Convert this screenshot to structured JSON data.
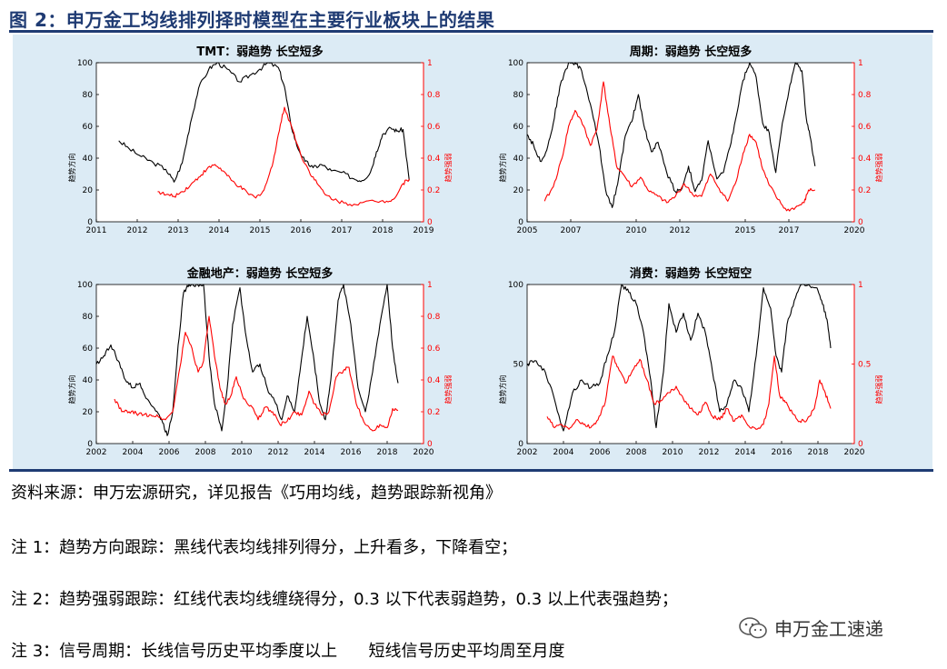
{
  "figure_title": "图 2：申万金工均线排列择时模型在主要行业板块上的结果",
  "colors": {
    "black_line": "#000000",
    "red_line": "#ff0000",
    "accent": "#1f3b73",
    "panel_bg": "#dcebf5"
  },
  "notes": {
    "source": "资料来源：申万宏源研究，详见报告《巧用均线，趋势跟踪新视角》",
    "note1": "注 1：趋势方向跟踪：黑线代表均线排列得分，上升看多，下降看空；",
    "note2": "注 2：趋势强弱跟踪：红线代表均线缠绕得分，0.3 以下代表弱趋势，0.3 以上代表强趋势；",
    "note3": "注 3：信号周期：长线信号历史平均季度以上      短线信号历史平均周至月度"
  },
  "watermark": {
    "text": "申万金工速递",
    "icon": "wechat-icon"
  },
  "chart_data": [
    {
      "type": "line",
      "title": "TMT：弱趋势   长空短多",
      "xlabel": "",
      "ylabel": "趋势方向",
      "y2label": "趋势强弱",
      "xlim": [
        2011,
        2019
      ],
      "ylim": [
        0,
        100
      ],
      "y2lim": [
        0,
        1
      ],
      "xticks": [
        "2011",
        "2012",
        "2013",
        "2014",
        "2015",
        "2016",
        "2017",
        "2018",
        "2019"
      ],
      "yticks": [
        "0",
        "20",
        "40",
        "60",
        "80",
        "100"
      ],
      "y2ticks": [
        "0",
        "0.2",
        "0.4",
        "0.6",
        "0.8",
        "1"
      ],
      "series": [
        {
          "axis": "left",
          "color": "#000000",
          "x": [
            2011.55,
            2011.8,
            2012.1,
            2012.4,
            2012.7,
            2012.9,
            2013.1,
            2013.3,
            2013.5,
            2013.75,
            2013.95,
            2014.2,
            2014.5,
            2014.75,
            2015.0,
            2015.2,
            2015.45,
            2015.6,
            2015.75,
            2015.9,
            2016.1,
            2016.3,
            2016.5,
            2016.75,
            2017.0,
            2017.3,
            2017.5,
            2017.7,
            2017.85,
            2018.0,
            2018.2,
            2018.35,
            2018.5,
            2018.65
          ],
          "y": [
            51,
            46,
            41,
            37,
            33,
            25,
            37,
            62,
            84,
            96,
            100,
            96,
            88,
            92,
            96,
            100,
            97,
            85,
            62,
            48,
            38,
            34,
            36,
            32,
            31,
            27,
            26,
            31,
            44,
            55,
            59,
            57,
            58,
            26
          ]
        },
        {
          "axis": "right",
          "color": "#ff0000",
          "x": [
            2012.5,
            2012.7,
            2012.9,
            2013.1,
            2013.3,
            2013.5,
            2013.7,
            2013.9,
            2014.1,
            2014.3,
            2014.5,
            2014.7,
            2014.9,
            2015.1,
            2015.3,
            2015.45,
            2015.6,
            2015.8,
            2016.0,
            2016.2,
            2016.4,
            2016.6,
            2016.9,
            2017.2,
            2017.5,
            2017.8,
            2018.1,
            2018.3,
            2018.5,
            2018.65
          ],
          "y": [
            0.19,
            0.17,
            0.16,
            0.19,
            0.23,
            0.28,
            0.33,
            0.36,
            0.32,
            0.26,
            0.22,
            0.18,
            0.15,
            0.2,
            0.35,
            0.55,
            0.72,
            0.58,
            0.42,
            0.32,
            0.24,
            0.17,
            0.13,
            0.11,
            0.12,
            0.13,
            0.13,
            0.15,
            0.24,
            0.27
          ]
        }
      ]
    },
    {
      "type": "line",
      "title": "周期：弱趋势   长空短多",
      "xlabel": "",
      "ylabel": "趋势方向",
      "y2label": "趋势强弱",
      "xlim": [
        2005,
        2020
      ],
      "ylim": [
        0,
        100
      ],
      "y2lim": [
        0,
        1
      ],
      "xticks": [
        "2005",
        "2007",
        "2010",
        "2012",
        "2015",
        "2017",
        "2020"
      ],
      "yticks": [
        "0",
        "20",
        "40",
        "60",
        "80",
        "100"
      ],
      "y2ticks": [
        "0",
        "0.2",
        "0.4",
        "0.6",
        "0.8",
        "1"
      ],
      "series": [
        {
          "axis": "left",
          "color": "#000000",
          "x": [
            2005.0,
            2005.3,
            2005.6,
            2005.9,
            2006.2,
            2006.5,
            2006.9,
            2007.2,
            2007.5,
            2007.9,
            2008.3,
            2008.6,
            2008.9,
            2009.2,
            2009.5,
            2009.8,
            2010.1,
            2010.4,
            2010.7,
            2011.0,
            2011.4,
            2011.8,
            2012.1,
            2012.4,
            2012.7,
            2013.0,
            2013.3,
            2013.7,
            2014.0,
            2014.3,
            2014.6,
            2014.9,
            2015.2,
            2015.5,
            2015.8,
            2016.1,
            2016.4,
            2016.7,
            2017.0,
            2017.3,
            2017.6,
            2017.8,
            2018.0,
            2018.2
          ],
          "y": [
            55,
            48,
            38,
            45,
            62,
            85,
            100,
            100,
            95,
            74,
            48,
            20,
            9,
            28,
            54,
            63,
            80,
            58,
            44,
            50,
            31,
            19,
            21,
            35,
            19,
            26,
            51,
            27,
            31,
            47,
            67,
            89,
            100,
            91,
            62,
            56,
            31,
            62,
            82,
            100,
            95,
            65,
            52,
            35
          ]
        },
        {
          "axis": "right",
          "color": "#ff0000",
          "x": [
            2005.8,
            2006.2,
            2006.6,
            2006.9,
            2007.2,
            2007.6,
            2007.9,
            2008.2,
            2008.5,
            2008.8,
            2009.1,
            2009.4,
            2009.8,
            2010.2,
            2010.6,
            2011.0,
            2011.4,
            2011.8,
            2012.2,
            2012.6,
            2013.0,
            2013.4,
            2013.8,
            2014.2,
            2014.6,
            2014.9,
            2015.2,
            2015.5,
            2015.8,
            2016.1,
            2016.5,
            2016.9,
            2017.3,
            2017.7,
            2017.9,
            2018.2
          ],
          "y": [
            0.13,
            0.22,
            0.4,
            0.6,
            0.7,
            0.6,
            0.48,
            0.58,
            0.88,
            0.6,
            0.35,
            0.3,
            0.22,
            0.28,
            0.19,
            0.16,
            0.12,
            0.16,
            0.24,
            0.17,
            0.16,
            0.3,
            0.21,
            0.13,
            0.26,
            0.43,
            0.55,
            0.5,
            0.33,
            0.23,
            0.14,
            0.07,
            0.09,
            0.12,
            0.2,
            0.2
          ]
        }
      ]
    },
    {
      "type": "line",
      "title": "金融地产：弱趋势   长空短多",
      "xlabel": "",
      "ylabel": "趋势方向",
      "y2label": "趋势强弱",
      "xlim": [
        2002,
        2020
      ],
      "ylim": [
        0,
        100
      ],
      "y2lim": [
        0,
        1
      ],
      "xticks": [
        "2002",
        "2004",
        "2006",
        "2008",
        "2010",
        "2012",
        "2014",
        "2016",
        "2018",
        "2020"
      ],
      "yticks": [
        "0",
        "20",
        "40",
        "60",
        "80",
        "100"
      ],
      "y2ticks": [
        "0",
        "0.2",
        "0.4",
        "0.6",
        "0.8",
        "1"
      ],
      "series": [
        {
          "axis": "left",
          "color": "#000000",
          "x": [
            2002.0,
            2002.4,
            2002.8,
            2003.2,
            2003.6,
            2004.0,
            2004.4,
            2004.8,
            2005.2,
            2005.6,
            2005.9,
            2006.2,
            2006.5,
            2006.8,
            2007.1,
            2007.5,
            2007.9,
            2008.2,
            2008.5,
            2008.9,
            2009.2,
            2009.5,
            2009.9,
            2010.2,
            2010.6,
            2011.0,
            2011.4,
            2011.8,
            2012.2,
            2012.5,
            2012.9,
            2013.2,
            2013.6,
            2014.0,
            2014.3,
            2014.6,
            2014.9,
            2015.3,
            2015.6,
            2016.0,
            2016.4,
            2016.8,
            2017.2,
            2017.6,
            2018.0,
            2018.3,
            2018.6
          ],
          "y": [
            50,
            55,
            62,
            52,
            40,
            35,
            38,
            28,
            22,
            15,
            5,
            20,
            62,
            95,
            100,
            100,
            100,
            55,
            25,
            8,
            35,
            75,
            98,
            70,
            45,
            50,
            35,
            27,
            15,
            30,
            20,
            45,
            80,
            50,
            25,
            15,
            40,
            90,
            100,
            75,
            35,
            20,
            45,
            75,
            100,
            60,
            38
          ]
        },
        {
          "axis": "right",
          "color": "#ff0000",
          "x": [
            2003.0,
            2003.4,
            2003.8,
            2004.2,
            2004.6,
            2005.0,
            2005.4,
            2005.8,
            2006.2,
            2006.6,
            2006.9,
            2007.2,
            2007.6,
            2007.9,
            2008.2,
            2008.5,
            2008.8,
            2009.1,
            2009.4,
            2009.7,
            2010.1,
            2010.5,
            2010.9,
            2011.3,
            2011.7,
            2012.1,
            2012.5,
            2012.9,
            2013.3,
            2013.7,
            2014.0,
            2014.4,
            2014.8,
            2015.2,
            2015.6,
            2015.9,
            2016.3,
            2016.8,
            2017.2,
            2017.6,
            2018.0,
            2018.3,
            2018.6
          ],
          "y": [
            0.28,
            0.2,
            0.2,
            0.19,
            0.18,
            0.18,
            0.17,
            0.15,
            0.2,
            0.48,
            0.7,
            0.62,
            0.45,
            0.52,
            0.8,
            0.55,
            0.35,
            0.25,
            0.3,
            0.42,
            0.28,
            0.24,
            0.15,
            0.23,
            0.2,
            0.12,
            0.14,
            0.2,
            0.18,
            0.33,
            0.25,
            0.18,
            0.2,
            0.42,
            0.46,
            0.48,
            0.25,
            0.12,
            0.08,
            0.12,
            0.1,
            0.22,
            0.21
          ]
        }
      ]
    },
    {
      "type": "line",
      "title": "消费：弱趋势   长空短空",
      "xlabel": "",
      "ylabel": "趋势方向",
      "y2label": "趋势强弱",
      "xlim": [
        2002,
        2020
      ],
      "ylim": [
        0,
        100
      ],
      "y2lim": [
        0,
        1
      ],
      "xticks": [
        "2002",
        "2004",
        "2006",
        "2008",
        "2010",
        "2012",
        "2014",
        "2016",
        "2018",
        "2020"
      ],
      "yticks": [
        "0",
        "50",
        "100"
      ],
      "y2ticks": [
        "0",
        "0.5",
        "1"
      ],
      "series": [
        {
          "axis": "left",
          "color": "#000000",
          "x": [
            2002.0,
            2002.5,
            2003.0,
            2003.5,
            2004.0,
            2004.5,
            2005.0,
            2005.5,
            2006.0,
            2006.4,
            2006.8,
            2007.2,
            2007.6,
            2008.0,
            2008.4,
            2008.8,
            2009.1,
            2009.5,
            2009.8,
            2010.2,
            2010.6,
            2011.0,
            2011.4,
            2011.8,
            2012.2,
            2012.6,
            2013.0,
            2013.4,
            2013.8,
            2014.2,
            2014.6,
            2015.0,
            2015.4,
            2015.7,
            2016.0,
            2016.3,
            2016.7,
            2017.1,
            2017.5,
            2017.9,
            2018.2,
            2018.5,
            2018.7
          ],
          "y": [
            50,
            52,
            45,
            28,
            8,
            32,
            40,
            35,
            38,
            55,
            70,
            100,
            95,
            88,
            70,
            40,
            10,
            45,
            88,
            70,
            82,
            65,
            82,
            70,
            45,
            20,
            25,
            40,
            35,
            20,
            55,
            98,
            85,
            55,
            45,
            75,
            90,
            100,
            100,
            98,
            90,
            78,
            60
          ]
        },
        {
          "axis": "right",
          "color": "#ff0000",
          "x": [
            2003.1,
            2003.5,
            2003.9,
            2004.3,
            2004.7,
            2005.1,
            2005.5,
            2005.9,
            2006.3,
            2006.7,
            2007.0,
            2007.4,
            2007.8,
            2008.2,
            2008.6,
            2009.0,
            2009.4,
            2009.8,
            2010.2,
            2010.6,
            2011.0,
            2011.4,
            2011.8,
            2012.2,
            2012.6,
            2013.0,
            2013.4,
            2013.8,
            2014.2,
            2014.6,
            2015.0,
            2015.3,
            2015.6,
            2015.9,
            2016.2,
            2016.6,
            2017.0,
            2017.4,
            2017.8,
            2018.1,
            2018.4,
            2018.7
          ],
          "y": [
            0.17,
            0.1,
            0.12,
            0.09,
            0.15,
            0.12,
            0.1,
            0.15,
            0.26,
            0.55,
            0.48,
            0.38,
            0.46,
            0.53,
            0.4,
            0.25,
            0.27,
            0.32,
            0.36,
            0.28,
            0.22,
            0.18,
            0.26,
            0.17,
            0.15,
            0.22,
            0.14,
            0.18,
            0.11,
            0.09,
            0.12,
            0.25,
            0.55,
            0.3,
            0.26,
            0.19,
            0.14,
            0.15,
            0.22,
            0.4,
            0.32,
            0.22
          ]
        }
      ]
    }
  ]
}
